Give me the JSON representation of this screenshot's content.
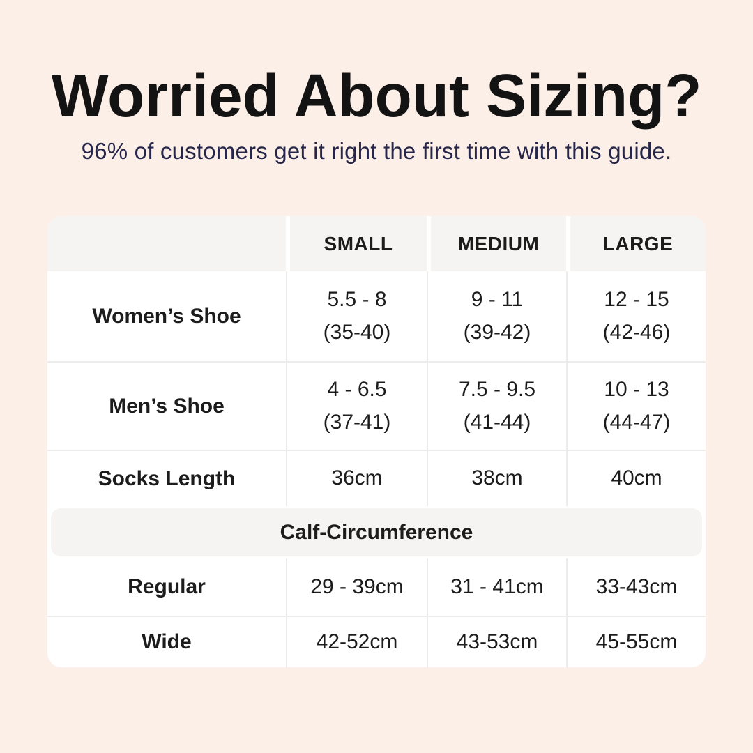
{
  "page": {
    "title": "Worried About Sizing?",
    "subtitle": "96% of customers get it right the first time with this guide."
  },
  "colors": {
    "background": "#fcefe8",
    "table_background": "#ffffff",
    "header_background": "#f5f4f2",
    "divider": "#ececea",
    "title_text": "#131313",
    "subtitle_text": "#26264a",
    "body_text": "#1c1c1c"
  },
  "table": {
    "columns": [
      "SMALL",
      "MEDIUM",
      "LARGE"
    ],
    "rows": [
      {
        "label": "Women’s Shoe",
        "small": [
          "5.5 - 8",
          "(35-40)"
        ],
        "medium": [
          "9 - 11",
          "(39-42)"
        ],
        "large": [
          "12 - 15",
          "(42-46)"
        ]
      },
      {
        "label": "Men’s Shoe",
        "small": [
          "4 - 6.5",
          "(37-41)"
        ],
        "medium": [
          "7.5 - 9.5",
          "(41-44)"
        ],
        "large": [
          "10 - 13",
          "(44-47)"
        ]
      },
      {
        "label": "Socks Length",
        "small": [
          "36cm"
        ],
        "medium": [
          "38cm"
        ],
        "large": [
          "40cm"
        ]
      }
    ],
    "section_header": "Calf-Circumference",
    "section_rows": [
      {
        "label": "Regular",
        "small": "29 - 39cm",
        "medium": "31 - 41cm",
        "large": "33-43cm"
      },
      {
        "label": "Wide",
        "small": "42-52cm",
        "medium": "43-53cm",
        "large": "45-55cm"
      }
    ]
  },
  "chart_data": {
    "type": "table",
    "title": "Worried About Sizing?",
    "subtitle": "96% of customers get it right the first time with this guide.",
    "columns": [
      "",
      "SMALL",
      "MEDIUM",
      "LARGE"
    ],
    "rows": [
      [
        "Women’s Shoe",
        "5.5 - 8 (35-40)",
        "9 - 11 (39-42)",
        "12 - 15 (42-46)"
      ],
      [
        "Men’s Shoe",
        "4 - 6.5 (37-41)",
        "7.5 - 9.5 (41-44)",
        "10 - 13 (44-47)"
      ],
      [
        "Socks Length",
        "36cm",
        "38cm",
        "40cm"
      ],
      [
        "Calf-Circumference",
        "",
        "",
        ""
      ],
      [
        "Regular",
        "29 - 39cm",
        "31 - 41cm",
        "33-43cm"
      ],
      [
        "Wide",
        "42-52cm",
        "43-53cm",
        "45-55cm"
      ]
    ],
    "notes": "Row 'Calf-Circumference' is a full-width section header band; parenthesized values are EU size equivalents"
  }
}
